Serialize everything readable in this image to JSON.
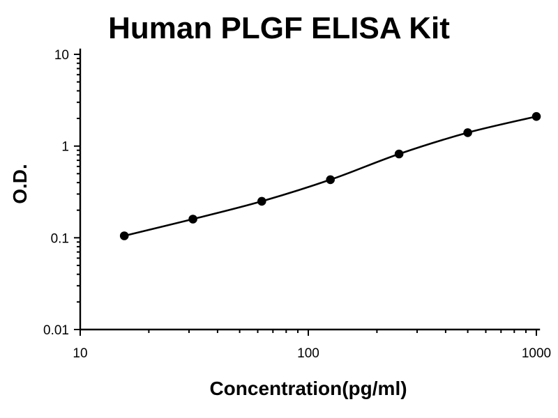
{
  "chart_data": {
    "type": "line",
    "title": "Human PLGF ELISA Kit",
    "xlabel": "Concentration(pg/ml)",
    "ylabel": "O.D.",
    "x_scale": "log",
    "y_scale": "log",
    "xlim": [
      10,
      1000
    ],
    "ylim": [
      0.01,
      10
    ],
    "grid": false,
    "legend": false,
    "x_ticks": [
      10,
      100,
      1000
    ],
    "x_tick_labels": [
      "10",
      "100",
      "1000"
    ],
    "y_ticks": [
      0.01,
      0.1,
      1,
      10
    ],
    "y_tick_labels": [
      "0.01",
      "0.1",
      "1",
      "10"
    ],
    "x": [
      15.6,
      31.2,
      62.5,
      125,
      250,
      500,
      1000
    ],
    "y": [
      0.105,
      0.16,
      0.25,
      0.43,
      0.82,
      1.4,
      2.1
    ],
    "marker": "circle",
    "line_color": "#000000",
    "marker_color": "#000000",
    "background_color": "#ffffff"
  }
}
